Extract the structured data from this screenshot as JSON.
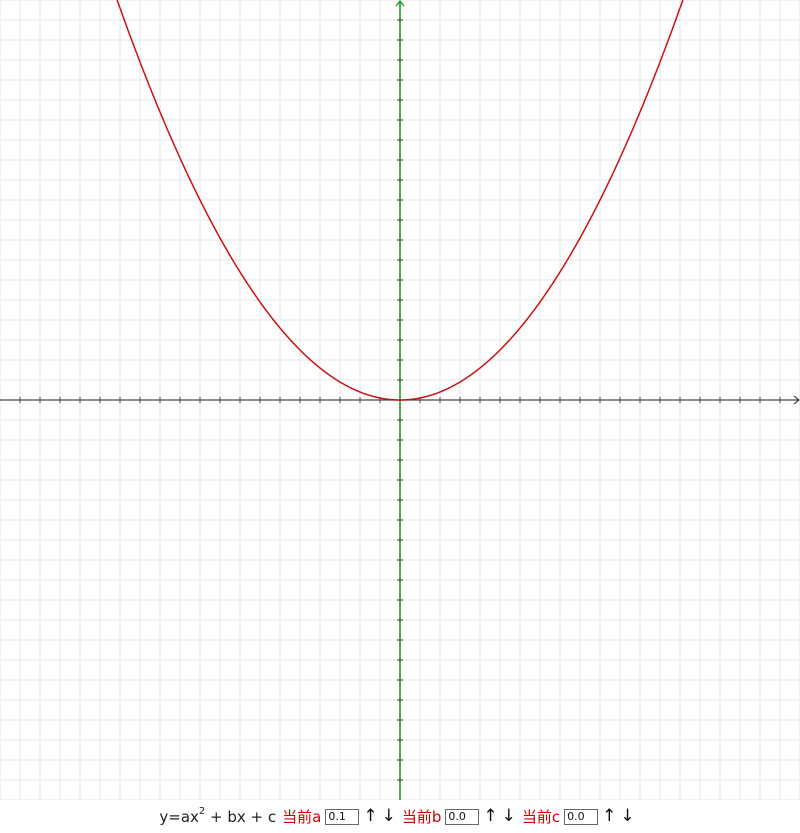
{
  "formula": {
    "prefix": "y=ax",
    "exponent": "2",
    "suffix": " + bx + c"
  },
  "params": [
    {
      "key": "a",
      "label": "当前a",
      "value": "0.1"
    },
    {
      "key": "b",
      "label": "当前b",
      "value": "0.0"
    },
    {
      "key": "c",
      "label": "当前c",
      "value": "0.0"
    }
  ],
  "controls": {
    "up_symbol": "↑",
    "down_symbol": "↓"
  },
  "colors": {
    "curve": "#cc1111",
    "x_axis": "#444444",
    "y_axis": "#1f9a1f",
    "grid": "#e6e6e6",
    "label": "#cc0000"
  },
  "chart_data": {
    "type": "line",
    "function": "y = a*x^2 + b*x + c",
    "coefficients": {
      "a": 0.1,
      "b": 0.0,
      "c": 0.0
    },
    "xlim": [
      -20,
      20
    ],
    "ylim": [
      -20,
      20
    ],
    "grid": true
  }
}
